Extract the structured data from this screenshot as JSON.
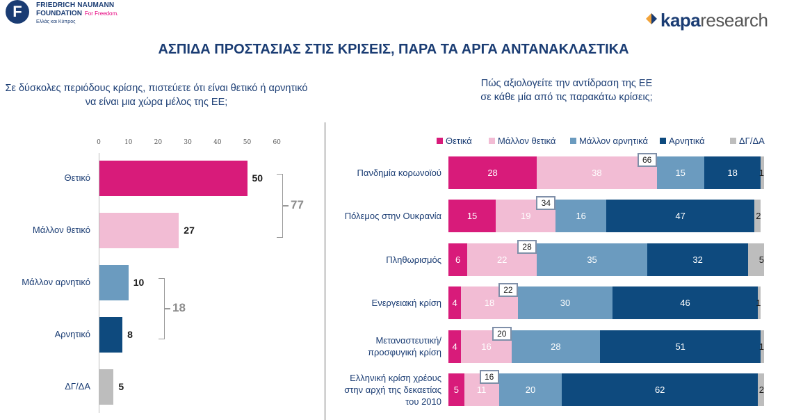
{
  "header": {
    "org_line1": "FRIEDRICH NAUMANN",
    "org_line2": "FOUNDATION",
    "org_tagline": "For Freedom.",
    "org_region": "Ελλάς και Κύπρος",
    "org_mark": "F",
    "research_bold": "kapa",
    "research_light": "research",
    "title": "ΑΣΠΙΔΑ ΠΡΟΣΤΑΣΙΑΣ ΣΤΙΣ ΚΡΙΣΕΙΣ, ΠΑΡΑ ΤΑ ΑΡΓΑ ΑΝΤΑΝΑΚΛΑΣΤΙΚΑ"
  },
  "colors": {
    "title": "#1a3c73",
    "positive": "#d81b7a",
    "rather_positive": "#f2bcd4",
    "rather_negative": "#6b9bbf",
    "negative": "#0e4a7e",
    "dk": "#bdbdbd"
  },
  "chart_data": [
    {
      "type": "bar",
      "orientation": "horizontal",
      "title": "Σε δύσκολες περιόδους κρίσης, πιστεύετε ότι είναι θετικό ή αρνητικό να είναι μια χώρα μέλος της ΕΕ;",
      "categories": [
        "Θετικό",
        "Μάλλον θετικό",
        "Μάλλον αρνητικό",
        "Αρνητικό",
        "ΔΓ/ΔΑ"
      ],
      "values": [
        50,
        27,
        10,
        8,
        5
      ],
      "bar_colors": [
        "#d81b7a",
        "#f2bcd4",
        "#6b9bbf",
        "#0e4a7e",
        "#bdbdbd"
      ],
      "xticks": [
        "0",
        "10",
        "20",
        "30",
        "40",
        "50",
        "60"
      ],
      "xlim": [
        0,
        60
      ],
      "grid": false,
      "annotations": [
        {
          "label": "77",
          "groups": [
            "Θετικό",
            "Μάλλον θετικό"
          ]
        },
        {
          "label": "18",
          "groups": [
            "Μάλλον αρνητικό",
            "Αρνητικό"
          ]
        }
      ]
    },
    {
      "type": "bar",
      "orientation": "horizontal",
      "stacked": true,
      "title_lines": [
        "Πώς αξιολογείτε την αντίδραση της ΕΕ",
        "σε κάθε μία από τις παρακάτω κρίσεις;"
      ],
      "categories": [
        [
          "Πανδημία κορωνοϊού"
        ],
        [
          "Πόλεμος στην Ουκρανία"
        ],
        [
          "Πληθωρισμός"
        ],
        [
          "Ενεργειακή κρίση"
        ],
        [
          "Μεταναστευτική/",
          "προσφυγική κρίση"
        ],
        [
          "Ελληνική κρίση χρέους",
          "στην αρχή της δεκαετίας",
          "του 2010"
        ]
      ],
      "series": [
        {
          "name": "Θετικά",
          "values": [
            28,
            15,
            6,
            4,
            4,
            5
          ]
        },
        {
          "name": "Μάλλον θετικά",
          "values": [
            38,
            19,
            22,
            18,
            16,
            11
          ]
        },
        {
          "name": "Μάλλον αρνητικά",
          "values": [
            15,
            16,
            35,
            30,
            28,
            20
          ]
        },
        {
          "name": "Αρνητικά",
          "values": [
            18,
            47,
            32,
            46,
            51,
            62
          ]
        },
        {
          "name": "ΔΓ/ΔΑ",
          "values": [
            1,
            2,
            5,
            1,
            1,
            2
          ]
        }
      ],
      "positive_totals": [
        66,
        34,
        28,
        22,
        20,
        16
      ],
      "xlim": [
        0,
        100
      ],
      "legend": "top",
      "grid": false
    }
  ]
}
